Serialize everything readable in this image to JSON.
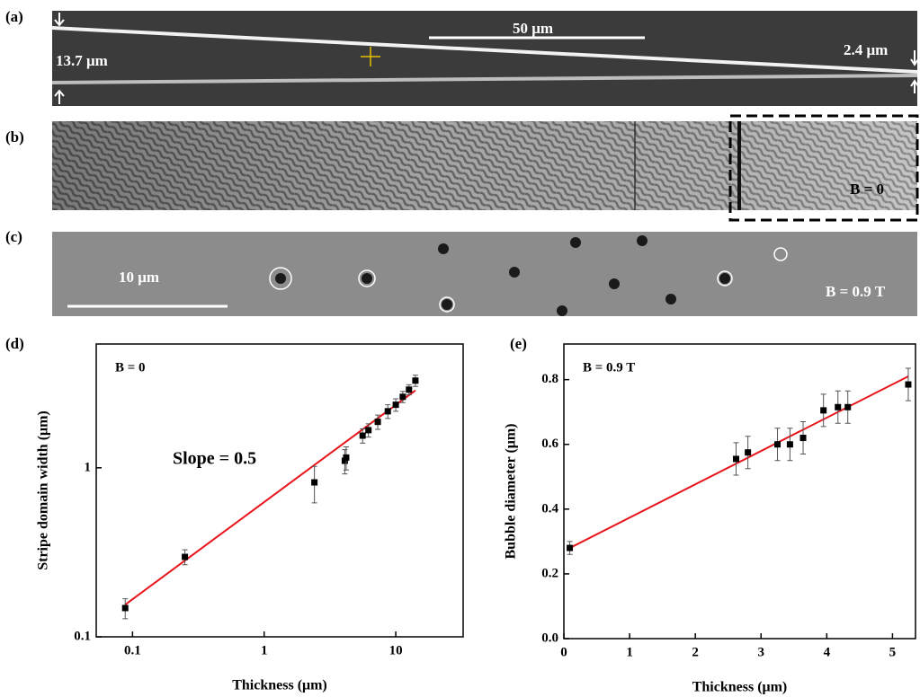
{
  "panels": [
    {
      "label": "(a)",
      "texts": [
        "50 μm",
        "13.7 μm",
        "2.4 μm"
      ]
    },
    {
      "label": "(b)",
      "texts": [
        "B = 0"
      ]
    },
    {
      "label": "(c)",
      "texts": [
        "10 μm",
        "B = 0.9 T"
      ]
    },
    {
      "label": "(d)",
      "texts": []
    },
    {
      "label": "(e)",
      "texts": []
    }
  ],
  "chart_data": [
    {
      "type": "scatter",
      "xlabel": "Thickness (μm)",
      "ylabel": "Stripe domain width (μm)",
      "log_x": true,
      "log_y": true,
      "xlim": [
        0.053,
        32.5
      ],
      "ylim": [
        0.1,
        5.4
      ],
      "xticks": [
        0.1,
        1,
        10
      ],
      "yticks": [
        0.1,
        1
      ],
      "annotations": [
        "B = 0",
        "Slope = 0.5"
      ],
      "x": [
        0.088,
        0.25,
        2.41,
        4.1,
        4.2,
        5.6,
        6.2,
        7.3,
        8.7,
        10,
        11.3,
        12.6,
        14.1
      ],
      "series": [
        {
          "color": "#000000",
          "values": [
            0.148,
            0.297,
            0.82,
            1.1,
            1.15,
            1.55,
            1.67,
            1.87,
            2.16,
            2.36,
            2.63,
            2.9,
            3.28
          ],
          "errors": [
            0.02,
            0.03,
            0.2,
            0.18,
            0.18,
            0.15,
            0.15,
            0.18,
            0.2,
            0.2,
            0.2,
            0.2,
            0.25
          ]
        }
      ],
      "fit": {
        "color": "#e8141b",
        "x": [
          0.088,
          14.1
        ],
        "values": [
          0.155,
          2.87
        ]
      }
    },
    {
      "type": "scatter",
      "xlabel": "Thickness (μm)",
      "ylabel": "Bubble diameter (μm)",
      "log_x": false,
      "log_y": false,
      "xlim": [
        0,
        5.35
      ],
      "ylim": [
        0,
        0.91
      ],
      "xticks": [
        0,
        1,
        2,
        3,
        4,
        5
      ],
      "yticks": [
        {
          "value": 0,
          "label": "0.0"
        },
        0.2,
        0.4,
        0.6,
        0.8
      ],
      "annotations": [
        "B = 0.9 T"
      ],
      "x": [
        0.09,
        2.62,
        2.8,
        3.25,
        3.44,
        3.64,
        3.95,
        4.17,
        4.32,
        5.24
      ],
      "series": [
        {
          "color": "#000000",
          "values": [
            0.28,
            0.555,
            0.575,
            0.6,
            0.6,
            0.62,
            0.705,
            0.715,
            0.715,
            0.785
          ],
          "errors": [
            0.02,
            0.05,
            0.05,
            0.05,
            0.05,
            0.05,
            0.05,
            0.05,
            0.05,
            0.05
          ]
        }
      ],
      "fit": {
        "color": "#e8141b",
        "x": [
          0.09,
          5.24
        ],
        "values": [
          0.28,
          0.81
        ]
      }
    }
  ]
}
